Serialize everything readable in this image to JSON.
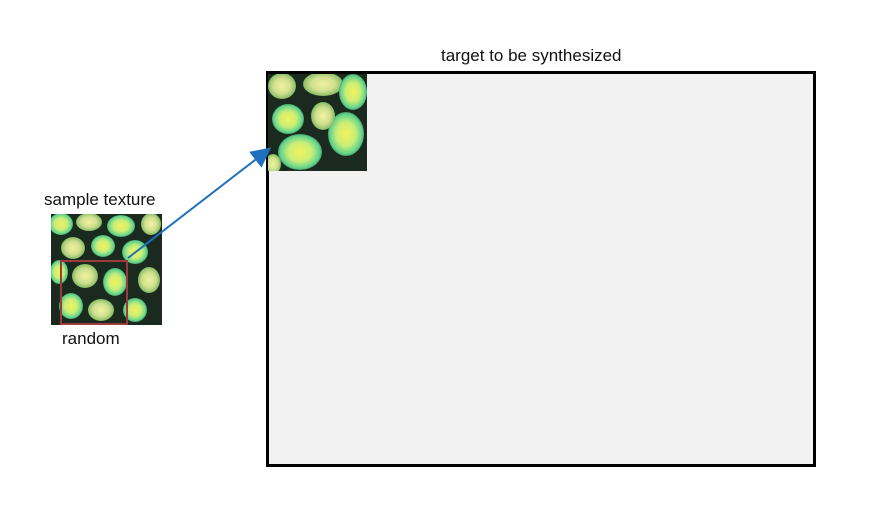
{
  "labels": {
    "target": "target to be synthesized",
    "sample": "sample texture",
    "random": "random"
  },
  "icons": {
    "texture": "cellular-texture-image",
    "arrow": "arrow-icon"
  },
  "colors": {
    "texture_dark": "#0f2a1b",
    "texture_cell": "#7ddf9a",
    "texture_center": "#f2f25a",
    "selection_box": "#9b3b3b",
    "arrow": "#1f6fbf",
    "target_fill": "#f2f2f2",
    "target_border": "#000000"
  }
}
